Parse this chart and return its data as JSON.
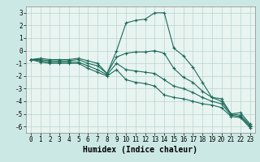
{
  "xlabel": "Humidex (Indice chaleur)",
  "background_color": "#cce8e4",
  "plot_bg_color": "#e8f4f0",
  "grid_color": "#b8d4d0",
  "line_color": "#1a6b5a",
  "xlim": [
    -0.5,
    23.5
  ],
  "ylim": [
    -6.5,
    3.5
  ],
  "yticks": [
    -6,
    -5,
    -4,
    -3,
    -2,
    -1,
    0,
    1,
    2,
    3
  ],
  "xticks": [
    0,
    1,
    2,
    3,
    4,
    5,
    6,
    7,
    8,
    9,
    10,
    11,
    12,
    13,
    14,
    15,
    16,
    17,
    18,
    19,
    20,
    21,
    22,
    23
  ],
  "lines": [
    {
      "x": [
        0,
        1,
        2,
        3,
        4,
        5,
        6,
        7,
        8,
        9,
        10,
        11,
        12,
        13,
        14,
        15,
        16,
        17,
        18,
        19,
        20,
        21,
        22,
        23
      ],
      "y": [
        -0.7,
        -0.6,
        -0.7,
        -0.7,
        -0.7,
        -0.6,
        -0.8,
        -1.0,
        -1.8,
        0.0,
        2.2,
        2.4,
        2.5,
        3.0,
        3.0,
        0.2,
        -0.4,
        -1.3,
        -2.5,
        -3.7,
        -3.8,
        -5.0,
        -4.9,
        -5.8
      ]
    },
    {
      "x": [
        0,
        1,
        2,
        3,
        4,
        5,
        6,
        7,
        8,
        9,
        10,
        11,
        12,
        13,
        14,
        15,
        16,
        17,
        18,
        19,
        20,
        21,
        22,
        23
      ],
      "y": [
        -0.7,
        -0.7,
        -0.8,
        -0.8,
        -0.8,
        -0.7,
        -1.0,
        -1.2,
        -1.8,
        -0.5,
        -0.2,
        -0.1,
        -0.1,
        0.0,
        -0.2,
        -1.4,
        -2.1,
        -2.5,
        -3.2,
        -3.7,
        -4.0,
        -5.0,
        -5.1,
        -5.9
      ]
    },
    {
      "x": [
        0,
        1,
        2,
        3,
        4,
        5,
        6,
        7,
        8,
        9,
        10,
        11,
        12,
        13,
        14,
        15,
        16,
        17,
        18,
        19,
        20,
        21,
        22,
        23
      ],
      "y": [
        -0.7,
        -0.8,
        -0.9,
        -0.9,
        -0.9,
        -0.9,
        -1.2,
        -1.5,
        -1.9,
        -1.0,
        -1.5,
        -1.6,
        -1.7,
        -1.8,
        -2.3,
        -2.8,
        -3.0,
        -3.3,
        -3.7,
        -4.0,
        -4.2,
        -5.1,
        -5.2,
        -6.0
      ]
    },
    {
      "x": [
        0,
        1,
        2,
        3,
        4,
        5,
        6,
        7,
        8,
        9,
        10,
        11,
        12,
        13,
        14,
        15,
        16,
        17,
        18,
        19,
        20,
        21,
        22,
        23
      ],
      "y": [
        -0.7,
        -0.9,
        -1.0,
        -1.0,
        -1.0,
        -1.0,
        -1.4,
        -1.7,
        -2.0,
        -1.5,
        -2.3,
        -2.5,
        -2.6,
        -2.8,
        -3.5,
        -3.7,
        -3.8,
        -4.0,
        -4.2,
        -4.3,
        -4.5,
        -5.2,
        -5.3,
        -6.1
      ]
    }
  ],
  "markersize": 2.0,
  "linewidth": 0.8,
  "xlabel_fontsize": 7,
  "tick_fontsize": 5.5
}
